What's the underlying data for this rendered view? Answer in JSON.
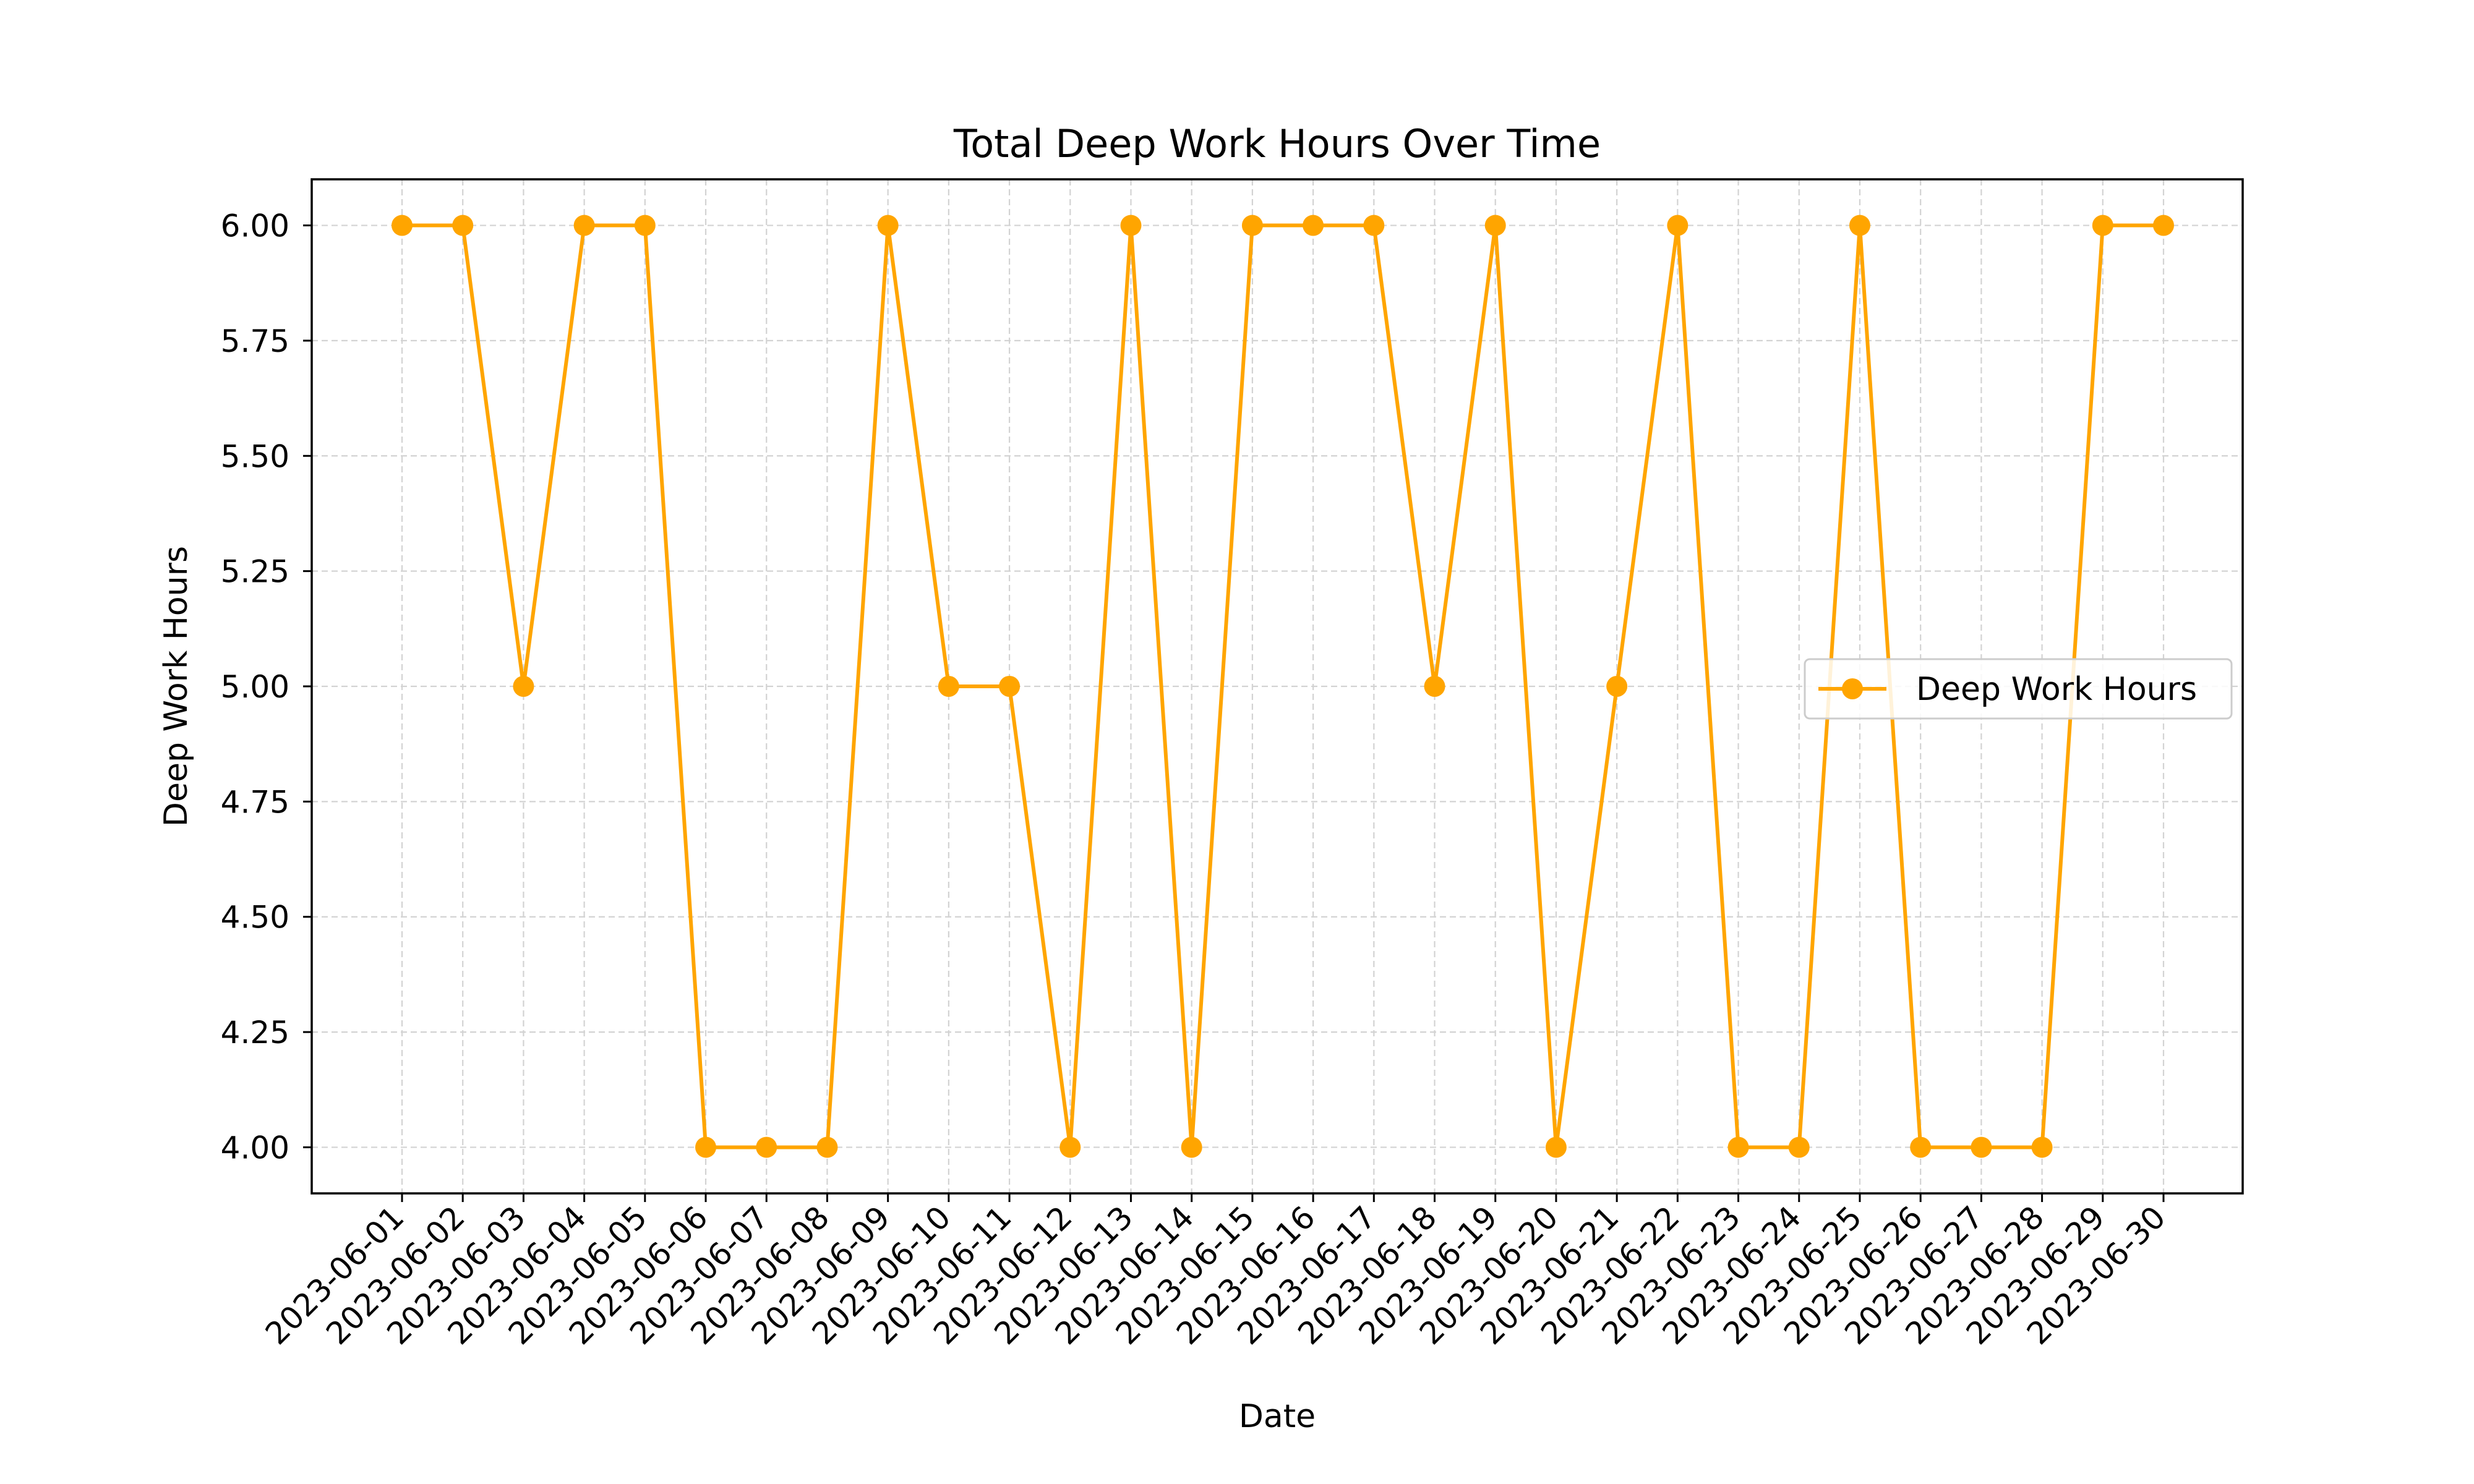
{
  "colors": {
    "series": "#FFA500",
    "grid": "#D3D3D3",
    "axes": "#000000",
    "background": "#FFFFFF"
  },
  "chart_data": {
    "type": "line",
    "title": "Total Deep Work Hours Over Time",
    "xlabel": "Date",
    "ylabel": "Deep Work Hours",
    "x": [
      "2023-06-01",
      "2023-06-02",
      "2023-06-03",
      "2023-06-04",
      "2023-06-05",
      "2023-06-06",
      "2023-06-07",
      "2023-06-08",
      "2023-06-09",
      "2023-06-10",
      "2023-06-11",
      "2023-06-12",
      "2023-06-13",
      "2023-06-14",
      "2023-06-15",
      "2023-06-16",
      "2023-06-17",
      "2023-06-18",
      "2023-06-19",
      "2023-06-20",
      "2023-06-21",
      "2023-06-22",
      "2023-06-23",
      "2023-06-24",
      "2023-06-25",
      "2023-06-26",
      "2023-06-27",
      "2023-06-28",
      "2023-06-29",
      "2023-06-30"
    ],
    "series": [
      {
        "name": "Deep Work Hours",
        "marker": "circle",
        "color": "#FFA500",
        "values": [
          6,
          6,
          5,
          6,
          6,
          4,
          4,
          4,
          6,
          5,
          5,
          4,
          6,
          4,
          6,
          6,
          6,
          5,
          6,
          4,
          5,
          6,
          4,
          4,
          6,
          4,
          4,
          4,
          6,
          6
        ]
      }
    ],
    "ylim": [
      3.9,
      6.1
    ],
    "yticks": [
      4.0,
      4.25,
      4.5,
      4.75,
      5.0,
      5.25,
      5.5,
      5.75,
      6.0
    ],
    "ytick_labels": [
      "4.00",
      "4.25",
      "4.50",
      "4.75",
      "5.00",
      "5.25",
      "5.50",
      "5.75",
      "6.00"
    ],
    "xtick_rotation": 45,
    "grid": true,
    "grid_style": "dashed",
    "legend": {
      "placement": "center-right",
      "entries": [
        "Deep Work Hours"
      ]
    }
  }
}
